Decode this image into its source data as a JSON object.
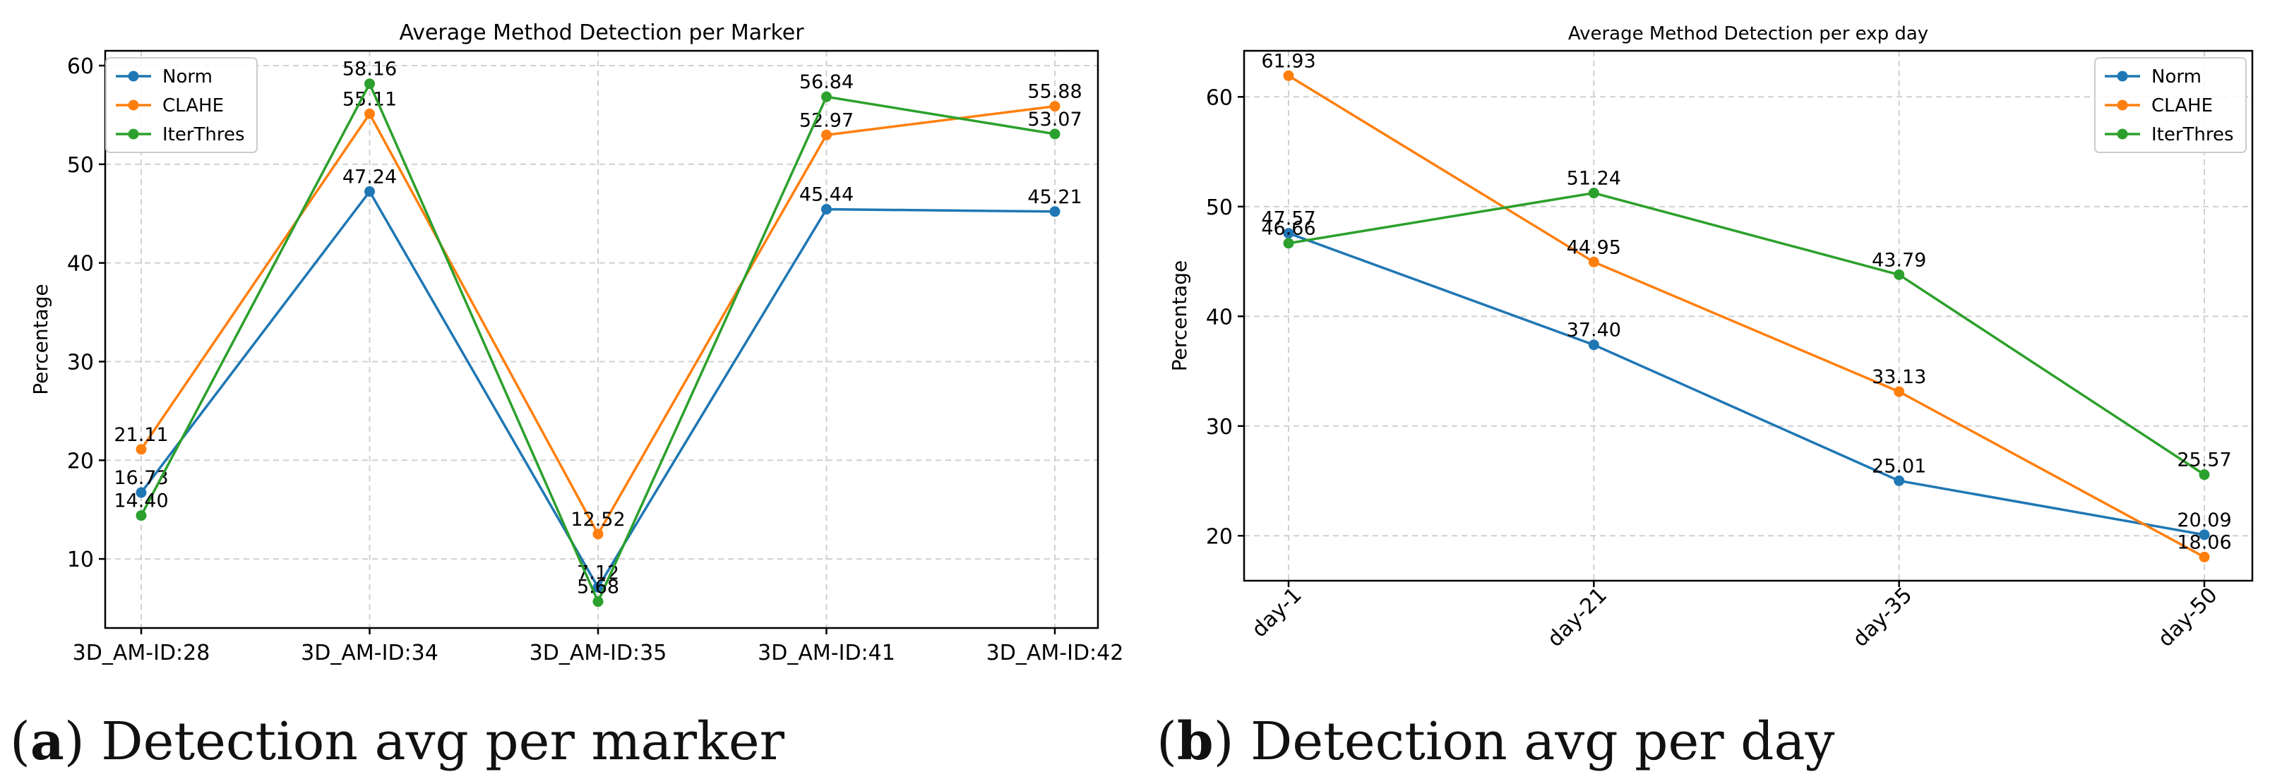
{
  "chart_data": [
    {
      "type": "line",
      "title": "Average Method Detection per Marker",
      "xlabel": "",
      "ylabel": "Percentage",
      "categories": [
        "3D_AM-ID:28",
        "3D_AM-ID:34",
        "3D_AM-ID:35",
        "3D_AM-ID:41",
        "3D_AM-ID:42"
      ],
      "series": [
        {
          "name": "Norm",
          "color": "#1f77b4",
          "values": [
            16.73,
            47.24,
            7.12,
            45.44,
            45.21
          ],
          "labels": [
            "16.73",
            "47.24",
            "7.12",
            "45.44",
            "45.21"
          ]
        },
        {
          "name": "CLAHE",
          "color": "#ff7f0e",
          "values": [
            21.11,
            55.11,
            12.52,
            52.97,
            55.88
          ],
          "labels": [
            "21.11",
            "55.11",
            "12.52",
            "52.97",
            "55.88"
          ]
        },
        {
          "name": "IterThres",
          "color": "#2ca02c",
          "values": [
            14.4,
            58.16,
            5.68,
            56.84,
            53.07
          ],
          "labels": [
            "14.40",
            "58.16",
            "5.68",
            "56.84",
            "53.07"
          ]
        }
      ],
      "ylim": [
        3.0,
        61.5
      ],
      "yticks": [
        10,
        20,
        30,
        40,
        50,
        60
      ],
      "grid": true,
      "legend": "top-left",
      "xtick_rotation": 0
    },
    {
      "type": "line",
      "title": "Average Method Detection per exp day",
      "xlabel": "",
      "ylabel": "Percentage",
      "categories": [
        "day-1",
        "day-21",
        "day-35",
        "day-50"
      ],
      "series": [
        {
          "name": "Norm",
          "color": "#1f77b4",
          "values": [
            47.57,
            37.4,
            25.01,
            20.09
          ],
          "labels": [
            "47.57",
            "37.40",
            "25.01",
            "20.09"
          ]
        },
        {
          "name": "CLAHE",
          "color": "#ff7f0e",
          "values": [
            61.93,
            44.95,
            33.13,
            18.06
          ],
          "labels": [
            "61.93",
            "44.95",
            "33.13",
            "18.06"
          ]
        },
        {
          "name": "IterThres",
          "color": "#2ca02c",
          "values": [
            46.66,
            51.24,
            43.79,
            25.57
          ],
          "labels": [
            "46.66",
            "51.24",
            "43.79",
            "25.57"
          ]
        }
      ],
      "ylim": [
        15.9,
        64.2
      ],
      "yticks": [
        20,
        30,
        40,
        50,
        60
      ],
      "grid": true,
      "legend": "top-right",
      "xtick_rotation": -45
    }
  ],
  "captions": [
    {
      "letter": "a",
      "text": "Detection avg per marker"
    },
    {
      "letter": "b",
      "text": "Detection avg per day"
    }
  ]
}
